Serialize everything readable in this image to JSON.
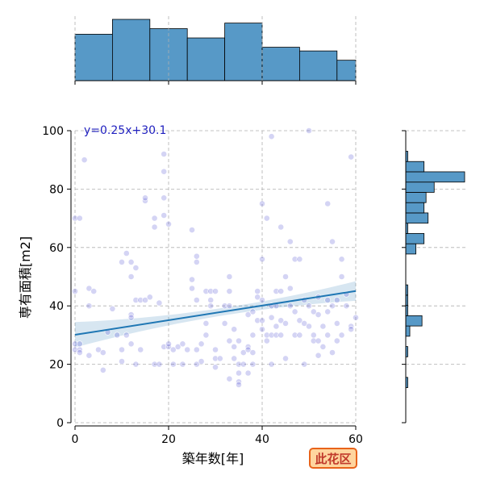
{
  "chart_data": {
    "type": "scatter",
    "xlabel": "築年数[年]",
    "ylabel": "専有面積[m2]",
    "xlim": [
      0,
      60
    ],
    "ylim": [
      0,
      100
    ],
    "x_ticks": [
      "0",
      "20",
      "40",
      "60"
    ],
    "y_ticks": [
      "0",
      "20",
      "40",
      "60",
      "80",
      "100"
    ],
    "grid": true,
    "regression": {
      "slope": 0.25,
      "intercept": 30.1,
      "label": "y=0.25x+30.1"
    },
    "point_color": "#3a3acf",
    "line_color": "#1f77b4",
    "hist_color": "#5799c7",
    "x_hist_counts": [
      25,
      33,
      28,
      23,
      31,
      18,
      16,
      11
    ],
    "x_hist_edges": [
      0,
      8,
      16,
      24,
      32,
      40,
      48,
      56,
      60
    ],
    "y_hist_counts": [
      1,
      0,
      0,
      1,
      0,
      2,
      8,
      1,
      1,
      1,
      0,
      0,
      0,
      5,
      9,
      1,
      11,
      9,
      10,
      14,
      29,
      9,
      1,
      0,
      0
    ],
    "y_hist_range": [
      12,
      100
    ],
    "points": [
      [
        0,
        70
      ],
      [
        1,
        70
      ],
      [
        2,
        90
      ],
      [
        0,
        27
      ],
      [
        1,
        27
      ],
      [
        0,
        25
      ],
      [
        1,
        25
      ],
      [
        1,
        24
      ],
      [
        3,
        23
      ],
      [
        3,
        40
      ],
      [
        3,
        46
      ],
      [
        4,
        45
      ],
      [
        0,
        45
      ],
      [
        5,
        25
      ],
      [
        6,
        18
      ],
      [
        6,
        24
      ],
      [
        7,
        31
      ],
      [
        8,
        39
      ],
      [
        9,
        30
      ],
      [
        10,
        25
      ],
      [
        10,
        21
      ],
      [
        10,
        55
      ],
      [
        11,
        58
      ],
      [
        11,
        30
      ],
      [
        12,
        55
      ],
      [
        12,
        50
      ],
      [
        12,
        37
      ],
      [
        12,
        36
      ],
      [
        12,
        27
      ],
      [
        13,
        53
      ],
      [
        13,
        42
      ],
      [
        13,
        20
      ],
      [
        14,
        25
      ],
      [
        14,
        42
      ],
      [
        15,
        42
      ],
      [
        15,
        76
      ],
      [
        15,
        77
      ],
      [
        16,
        43
      ],
      [
        17,
        70
      ],
      [
        17,
        67
      ],
      [
        17,
        20
      ],
      [
        18,
        20
      ],
      [
        18,
        41
      ],
      [
        19,
        26
      ],
      [
        19,
        92
      ],
      [
        19,
        86
      ],
      [
        19,
        77
      ],
      [
        19,
        71
      ],
      [
        20,
        68
      ],
      [
        20,
        26
      ],
      [
        20,
        27
      ],
      [
        21,
        25
      ],
      [
        21,
        20
      ],
      [
        22,
        26
      ],
      [
        23,
        20
      ],
      [
        23,
        27
      ],
      [
        24,
        25
      ],
      [
        25,
        66
      ],
      [
        25,
        49
      ],
      [
        25,
        46
      ],
      [
        26,
        57
      ],
      [
        26,
        55
      ],
      [
        26,
        42
      ],
      [
        26,
        25
      ],
      [
        26,
        20
      ],
      [
        27,
        27
      ],
      [
        27,
        21
      ],
      [
        28,
        45
      ],
      [
        28,
        34
      ],
      [
        28,
        30
      ],
      [
        29,
        45
      ],
      [
        29,
        42
      ],
      [
        29,
        40
      ],
      [
        30,
        45
      ],
      [
        30,
        25
      ],
      [
        30,
        22
      ],
      [
        30,
        19
      ],
      [
        31,
        22
      ],
      [
        32,
        34
      ],
      [
        32,
        40
      ],
      [
        33,
        50
      ],
      [
        33,
        45
      ],
      [
        33,
        40
      ],
      [
        33,
        28
      ],
      [
        33,
        15
      ],
      [
        34,
        32
      ],
      [
        34,
        26
      ],
      [
        34,
        22
      ],
      [
        35,
        28
      ],
      [
        35,
        20
      ],
      [
        35,
        17
      ],
      [
        35,
        14
      ],
      [
        35,
        13
      ],
      [
        36,
        24
      ],
      [
        36,
        20
      ],
      [
        37,
        37
      ],
      [
        37,
        26
      ],
      [
        37,
        25
      ],
      [
        37,
        17
      ],
      [
        38,
        24
      ],
      [
        38,
        20
      ],
      [
        38,
        30
      ],
      [
        38,
        38
      ],
      [
        39,
        35
      ],
      [
        39,
        43
      ],
      [
        39,
        45
      ],
      [
        40,
        56
      ],
      [
        40,
        75
      ],
      [
        40,
        42
      ],
      [
        40,
        35
      ],
      [
        40,
        32
      ],
      [
        41,
        70
      ],
      [
        41,
        30
      ],
      [
        41,
        28
      ],
      [
        42,
        98
      ],
      [
        42,
        40
      ],
      [
        42,
        36
      ],
      [
        42,
        30
      ],
      [
        42,
        20
      ],
      [
        43,
        45
      ],
      [
        43,
        40
      ],
      [
        43,
        33
      ],
      [
        43,
        30
      ],
      [
        44,
        67
      ],
      [
        44,
        45
      ],
      [
        44,
        35
      ],
      [
        44,
        30
      ],
      [
        45,
        50
      ],
      [
        45,
        34
      ],
      [
        45,
        22
      ],
      [
        46,
        62
      ],
      [
        46,
        46
      ],
      [
        46,
        40
      ],
      [
        47,
        56
      ],
      [
        47,
        38
      ],
      [
        47,
        30
      ],
      [
        48,
        56
      ],
      [
        48,
        35
      ],
      [
        48,
        30
      ],
      [
        49,
        42
      ],
      [
        49,
        34
      ],
      [
        49,
        20
      ],
      [
        50,
        100
      ],
      [
        50,
        40
      ],
      [
        50,
        33
      ],
      [
        51,
        38
      ],
      [
        51,
        30
      ],
      [
        51,
        28
      ],
      [
        52,
        43
      ],
      [
        52,
        37
      ],
      [
        52,
        28
      ],
      [
        52,
        23
      ],
      [
        53,
        33
      ],
      [
        53,
        26
      ],
      [
        54,
        75
      ],
      [
        54,
        42
      ],
      [
        54,
        38
      ],
      [
        54,
        30
      ],
      [
        55,
        62
      ],
      [
        55,
        40
      ],
      [
        55,
        24
      ],
      [
        56,
        42
      ],
      [
        56,
        34
      ],
      [
        56,
        28
      ],
      [
        57,
        56
      ],
      [
        57,
        50
      ],
      [
        57,
        30
      ],
      [
        58,
        44
      ],
      [
        58,
        40
      ],
      [
        59,
        91
      ],
      [
        59,
        33
      ],
      [
        59,
        32
      ],
      [
        60,
        36
      ]
    ]
  },
  "badge": {
    "label": "此花区",
    "bg": "#ffd59e",
    "border": "#e8631a"
  }
}
